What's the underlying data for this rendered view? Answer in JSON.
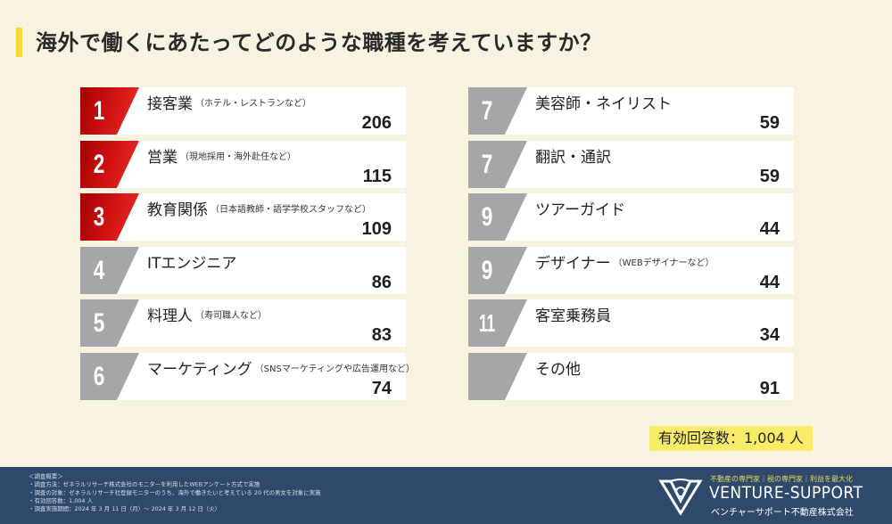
{
  "title": "海外で働くにあたってどのような職種を考えていますか？",
  "chart_data": {
    "type": "table",
    "title": "海外で働くにあたってどのような職種を考えていますか？",
    "rows": [
      {
        "rank": "1",
        "label": "接客業",
        "sub": "（ホテル・レストランなど）",
        "value": "206"
      },
      {
        "rank": "2",
        "label": "営業",
        "sub": "（現地採用・海外赴任など）",
        "value": "115"
      },
      {
        "rank": "3",
        "label": "教育関係",
        "sub": "（日本語教師・語学学校スタッフなど）",
        "value": "109"
      },
      {
        "rank": "4",
        "label": "ITエンジニア",
        "sub": "",
        "value": "86"
      },
      {
        "rank": "5",
        "label": "料理人",
        "sub": "（寿司職人など）",
        "value": "83"
      },
      {
        "rank": "6",
        "label": "マーケティング",
        "sub": "（SNSマーケティングや広告運用など）",
        "value": "74"
      },
      {
        "rank": "7",
        "label": "美容師・ネイリスト",
        "sub": "",
        "value": "59"
      },
      {
        "rank": "7",
        "label": "翻訳・通訳",
        "sub": "",
        "value": "59"
      },
      {
        "rank": "9",
        "label": "ツアーガイド",
        "sub": "",
        "value": "44"
      },
      {
        "rank": "9",
        "label": "デザイナー",
        "sub": "（WEBデザイナーなど）",
        "value": "44"
      },
      {
        "rank": "11",
        "label": "客室乗務員",
        "sub": "",
        "value": "34"
      },
      {
        "rank": "",
        "label": "その他",
        "sub": "",
        "value": "91"
      }
    ],
    "top_color": "#c80f0f",
    "other_color": "#a6a6a8"
  },
  "total": "有効回答数：1,004 人",
  "footer": {
    "survey_lines": [
      "＜調査概要＞",
      "・調査方法：ゼネラルリサーチ株式会社のモニターを利用したWEBアンケート方式で実施",
      "・調査の対象：ゼネラルリサーチ社登録モニターのうち、海外で働きたいと考えている 20 代の男女を対象に実施",
      "・有効回答数：1,004 人",
      "・調査実施期間：2024 年 3 月 11 日（月）～ 2024 年 3 月 12 日（火）"
    ],
    "tagline": "不動産の専門家｜税の専門家｜利益を最大化",
    "brand": "VENTURE-SUPPORT",
    "brand_sub": "ベンチャーサポート不動産株式会社"
  }
}
